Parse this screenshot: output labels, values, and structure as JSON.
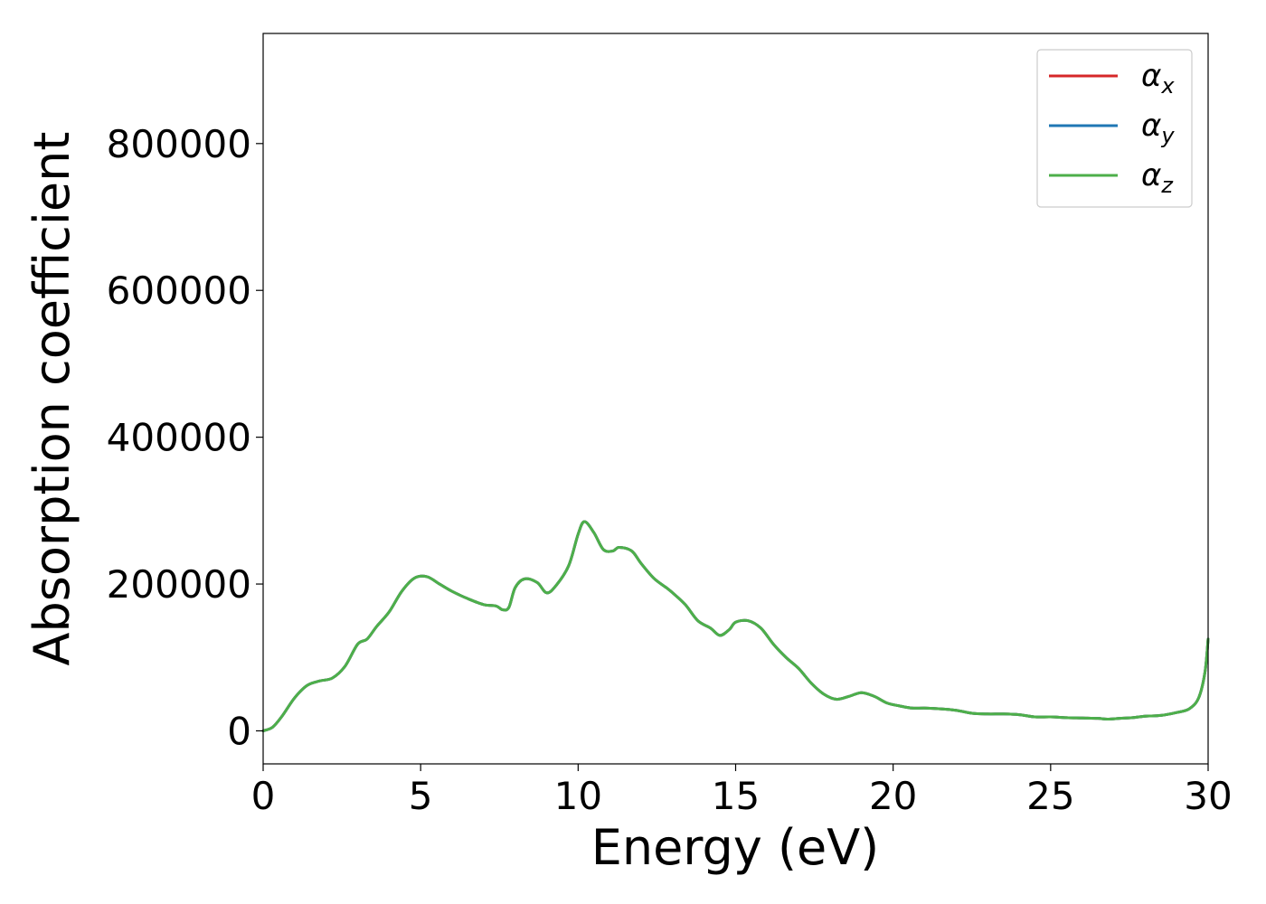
{
  "chart_data": {
    "type": "line",
    "title": "",
    "xlabel": "Energy (eV)",
    "ylabel": "Absorption coefficient",
    "xlim": [
      0,
      30
    ],
    "ylim": [
      -45000,
      950000
    ],
    "xticks": [
      0,
      5,
      10,
      15,
      20,
      25,
      30
    ],
    "yticks": [
      0,
      200000,
      400000,
      600000,
      800000
    ],
    "xtick_labels": [
      "0",
      "5",
      "10",
      "15",
      "20",
      "25",
      "30"
    ],
    "ytick_labels": [
      "0",
      "200000",
      "400000",
      "600000",
      "800000"
    ],
    "grid": false,
    "legend_placement": "top-right",
    "legend": [
      {
        "symbol": "α",
        "subscript": "x",
        "color": "#d62728"
      },
      {
        "symbol": "α",
        "subscript": "y",
        "color": "#1f77b4"
      },
      {
        "symbol": "α",
        "subscript": "z",
        "color": "#4daf4a"
      }
    ],
    "x": [
      0,
      0.3,
      0.6,
      1.0,
      1.4,
      1.8,
      2.2,
      2.6,
      3.0,
      3.3,
      3.6,
      4.0,
      4.4,
      4.8,
      5.2,
      5.6,
      6.0,
      6.5,
      7.0,
      7.4,
      7.6,
      7.8,
      8.0,
      8.3,
      8.7,
      9.0,
      9.3,
      9.7,
      10.0,
      10.2,
      10.5,
      10.8,
      11.1,
      11.3,
      11.7,
      12.0,
      12.4,
      12.8,
      13.0,
      13.4,
      13.8,
      14.2,
      14.5,
      14.8,
      15.0,
      15.4,
      15.8,
      16.2,
      16.6,
      17.0,
      17.4,
      17.8,
      18.2,
      18.6,
      19.0,
      19.4,
      19.8,
      20.2,
      20.6,
      21.0,
      21.5,
      22.0,
      22.5,
      23.0,
      23.5,
      24.0,
      24.5,
      25.0,
      25.5,
      26.0,
      26.5,
      26.8,
      27.2,
      27.6,
      28.0,
      28.5,
      29.0,
      29.4,
      29.7,
      29.9,
      30.0
    ],
    "series": [
      {
        "values": [
          0,
          5000,
          20000,
          45000,
          62000,
          68000,
          72000,
          88000,
          118000,
          125000,
          142000,
          162000,
          190000,
          208000,
          210000,
          200000,
          190000,
          180000,
          172000,
          170000,
          165000,
          168000,
          195000,
          207000,
          202000,
          188000,
          198000,
          225000,
          268000,
          285000,
          270000,
          247000,
          245000,
          250000,
          245000,
          228000,
          208000,
          195000,
          188000,
          172000,
          150000,
          140000,
          130000,
          138000,
          148000,
          150000,
          140000,
          118000,
          100000,
          85000,
          65000,
          50000,
          43000,
          47000,
          52000,
          47000,
          38000,
          34000,
          31000,
          31000,
          30000,
          28000,
          24000,
          23000,
          23000,
          22000,
          19000,
          19000,
          18000,
          17500,
          17000,
          16000,
          17000,
          18000,
          20000,
          21000,
          25000,
          30000,
          45000,
          80000,
          125000
        ]
      },
      {
        "values": [
          0,
          5000,
          20000,
          45000,
          62000,
          68000,
          72000,
          88000,
          118000,
          125000,
          142000,
          162000,
          190000,
          208000,
          210000,
          200000,
          190000,
          180000,
          172000,
          170000,
          165000,
          168000,
          195000,
          207000,
          202000,
          188000,
          198000,
          225000,
          268000,
          285000,
          270000,
          247000,
          245000,
          250000,
          245000,
          228000,
          208000,
          195000,
          188000,
          172000,
          150000,
          140000,
          130000,
          138000,
          148000,
          150000,
          140000,
          118000,
          100000,
          85000,
          65000,
          50000,
          43000,
          47000,
          52000,
          47000,
          38000,
          34000,
          31000,
          31000,
          30000,
          28000,
          24000,
          23000,
          23000,
          22000,
          19000,
          19000,
          18000,
          17500,
          17000,
          16000,
          17000,
          18000,
          20000,
          21000,
          25000,
          30000,
          45000,
          80000,
          125000
        ]
      },
      {
        "values": [
          0,
          5000,
          20000,
          45000,
          62000,
          68000,
          72000,
          88000,
          118000,
          125000,
          142000,
          162000,
          190000,
          208000,
          210000,
          200000,
          190000,
          180000,
          172000,
          170000,
          165000,
          168000,
          195000,
          207000,
          202000,
          188000,
          198000,
          225000,
          268000,
          285000,
          270000,
          247000,
          245000,
          250000,
          245000,
          228000,
          208000,
          195000,
          188000,
          172000,
          150000,
          140000,
          130000,
          138000,
          148000,
          150000,
          140000,
          118000,
          100000,
          85000,
          65000,
          50000,
          43000,
          47000,
          52000,
          47000,
          38000,
          34000,
          31000,
          31000,
          30000,
          28000,
          24000,
          23000,
          23000,
          22000,
          19000,
          19000,
          18000,
          17500,
          17000,
          16000,
          17000,
          18000,
          20000,
          21000,
          25000,
          30000,
          45000,
          80000,
          125000
        ]
      }
    ]
  }
}
